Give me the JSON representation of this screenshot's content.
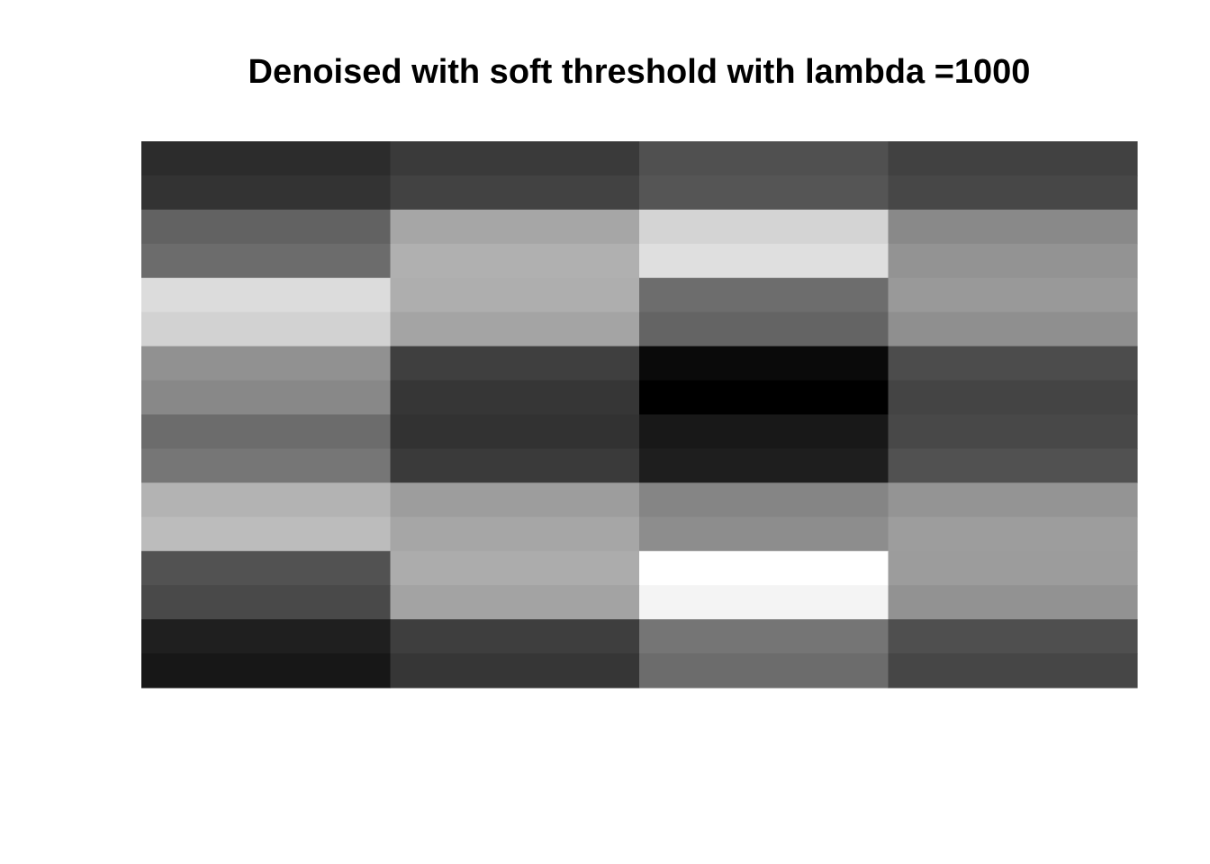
{
  "chart_data": {
    "type": "heatmap",
    "title": "Denoised with soft threshold with lambda =1000",
    "xlabel": "",
    "ylabel": "",
    "colormap": "grayscale",
    "axes_shown": false,
    "grid": false,
    "legend": "none",
    "n_rows": 16,
    "n_cols": 4,
    "row_order": "top-to-bottom",
    "value_range": [
      0,
      255
    ],
    "values": [
      [
        44,
        58,
        80,
        65
      ],
      [
        51,
        66,
        85,
        71
      ],
      [
        98,
        166,
        212,
        137
      ],
      [
        108,
        176,
        223,
        147
      ],
      [
        220,
        174,
        109,
        153
      ],
      [
        210,
        164,
        100,
        143
      ],
      [
        145,
        63,
        10,
        76
      ],
      [
        136,
        54,
        0,
        68
      ],
      [
        108,
        50,
        24,
        72
      ],
      [
        118,
        58,
        30,
        81
      ],
      [
        179,
        157,
        133,
        148
      ],
      [
        188,
        166,
        141,
        157
      ],
      [
        82,
        172,
        255,
        156
      ],
      [
        73,
        163,
        244,
        146
      ],
      [
        31,
        62,
        117,
        79
      ],
      [
        23,
        54,
        108,
        70
      ]
    ]
  }
}
